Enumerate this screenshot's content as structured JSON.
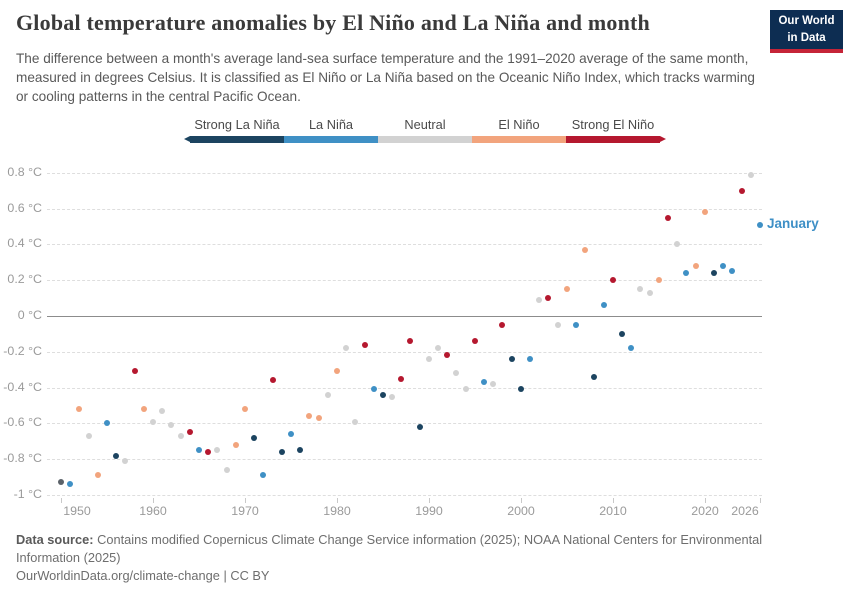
{
  "header": {
    "title": "Global temperature anomalies by El Niño and La Niña and month",
    "subtitle": "The difference between a month's average land-sea surface temperature and the 1991–2020 average of the same month, measured in degrees Celsius. It is classified as El Niño or La Niña based on the Oceanic Niño Index, which tracks warming or cooling patterns in the central Pacific Ocean.",
    "logo_line1": "Our World",
    "logo_line2": "in Data",
    "logo_colors": {
      "background": "#0d2d52",
      "underline": "#c52438"
    }
  },
  "legend": {
    "categories": [
      {
        "id": "strong-la-nina",
        "label": "Strong La Niña",
        "color": "#1c4460"
      },
      {
        "id": "la-nina",
        "label": "La Niña",
        "color": "#3f90c5"
      },
      {
        "id": "neutral",
        "label": "Neutral",
        "color": "#d2d2d2"
      },
      {
        "id": "el-nino",
        "label": "El Niño",
        "color": "#f2a47d"
      },
      {
        "id": "strong-el-nino",
        "label": "Strong El Niño",
        "color": "#b5182f"
      }
    ]
  },
  "chart_data": {
    "type": "scatter",
    "title": "Global temperature anomalies by El Niño and La Niña and month",
    "series_label": "January",
    "series_label_color": "#3d8fc6",
    "xlabel": "",
    "ylabel": "°C",
    "xlim": [
      1948.5,
      2027
    ],
    "ylim": [
      -1.0,
      0.8
    ],
    "grid": "dashed horizontal, solid zero line",
    "legend_position": "top gradient bar with end arrows",
    "x_ticks": [
      1950,
      1960,
      1970,
      1980,
      1990,
      2000,
      2010,
      2020,
      2026
    ],
    "y_ticks": [
      {
        "value": 0.8,
        "label": "0.8 °C"
      },
      {
        "value": 0.6,
        "label": "0.6 °C"
      },
      {
        "value": 0.4,
        "label": "0.4 °C"
      },
      {
        "value": 0.2,
        "label": "0.2 °C"
      },
      {
        "value": 0,
        "label": "0 °C"
      },
      {
        "value": -0.2,
        "label": "-0.2 °C"
      },
      {
        "value": -0.4,
        "label": "-0.4 °C"
      },
      {
        "value": -0.6,
        "label": "-0.6 °C"
      },
      {
        "value": -0.8,
        "label": "-0.8 °C"
      },
      {
        "value": -1,
        "label": "-1 °C"
      }
    ],
    "points": [
      {
        "year": 1950,
        "value": -0.93,
        "category": "neutral",
        "color_override": "#5b6269"
      },
      {
        "year": 1951,
        "value": -0.94,
        "category": "la-nina"
      },
      {
        "year": 1952,
        "value": -0.52,
        "category": "el-nino"
      },
      {
        "year": 1953,
        "value": -0.67,
        "category": "neutral"
      },
      {
        "year": 1954,
        "value": -0.89,
        "category": "el-nino"
      },
      {
        "year": 1955,
        "value": -0.6,
        "category": "la-nina"
      },
      {
        "year": 1956,
        "value": -0.78,
        "category": "strong-la-nina"
      },
      {
        "year": 1957,
        "value": -0.81,
        "category": "neutral"
      },
      {
        "year": 1958,
        "value": -0.31,
        "category": "strong-el-nino"
      },
      {
        "year": 1959,
        "value": -0.52,
        "category": "el-nino"
      },
      {
        "year": 1960,
        "value": -0.59,
        "category": "neutral"
      },
      {
        "year": 1961,
        "value": -0.53,
        "category": "neutral"
      },
      {
        "year": 1962,
        "value": -0.61,
        "category": "neutral"
      },
      {
        "year": 1963,
        "value": -0.67,
        "category": "neutral"
      },
      {
        "year": 1964,
        "value": -0.65,
        "category": "strong-el-nino"
      },
      {
        "year": 1965,
        "value": -0.75,
        "category": "la-nina"
      },
      {
        "year": 1966,
        "value": -0.76,
        "category": "strong-el-nino"
      },
      {
        "year": 1967,
        "value": -0.75,
        "category": "neutral"
      },
      {
        "year": 1968,
        "value": -0.86,
        "category": "neutral"
      },
      {
        "year": 1969,
        "value": -0.72,
        "category": "el-nino"
      },
      {
        "year": 1970,
        "value": -0.52,
        "category": "el-nino"
      },
      {
        "year": 1971,
        "value": -0.68,
        "category": "strong-la-nina"
      },
      {
        "year": 1972,
        "value": -0.89,
        "category": "la-nina"
      },
      {
        "year": 1973,
        "value": -0.36,
        "category": "strong-el-nino"
      },
      {
        "year": 1974,
        "value": -0.76,
        "category": "strong-la-nina"
      },
      {
        "year": 1975,
        "value": -0.66,
        "category": "la-nina"
      },
      {
        "year": 1976,
        "value": -0.75,
        "category": "strong-la-nina"
      },
      {
        "year": 1977,
        "value": -0.56,
        "category": "el-nino"
      },
      {
        "year": 1978,
        "value": -0.57,
        "category": "el-nino"
      },
      {
        "year": 1979,
        "value": -0.44,
        "category": "neutral"
      },
      {
        "year": 1980,
        "value": -0.31,
        "category": "el-nino"
      },
      {
        "year": 1981,
        "value": -0.18,
        "category": "neutral"
      },
      {
        "year": 1982,
        "value": -0.59,
        "category": "neutral"
      },
      {
        "year": 1983,
        "value": -0.16,
        "category": "strong-el-nino"
      },
      {
        "year": 1984,
        "value": -0.41,
        "category": "la-nina"
      },
      {
        "year": 1985,
        "value": -0.44,
        "category": "strong-la-nina"
      },
      {
        "year": 1986,
        "value": -0.45,
        "category": "neutral"
      },
      {
        "year": 1987,
        "value": -0.35,
        "category": "strong-el-nino"
      },
      {
        "year": 1988,
        "value": -0.14,
        "category": "strong-el-nino"
      },
      {
        "year": 1989,
        "value": -0.62,
        "category": "strong-la-nina"
      },
      {
        "year": 1990,
        "value": -0.24,
        "category": "neutral"
      },
      {
        "year": 1991,
        "value": -0.18,
        "category": "neutral"
      },
      {
        "year": 1992,
        "value": -0.22,
        "category": "strong-el-nino"
      },
      {
        "year": 1993,
        "value": -0.32,
        "category": "neutral"
      },
      {
        "year": 1994,
        "value": -0.41,
        "category": "neutral"
      },
      {
        "year": 1995,
        "value": -0.14,
        "category": "strong-el-nino"
      },
      {
        "year": 1996,
        "value": -0.37,
        "category": "la-nina"
      },
      {
        "year": 1997,
        "value": -0.38,
        "category": "neutral"
      },
      {
        "year": 1998,
        "value": -0.05,
        "category": "strong-el-nino"
      },
      {
        "year": 1999,
        "value": -0.24,
        "category": "strong-la-nina"
      },
      {
        "year": 2000,
        "value": -0.41,
        "category": "strong-la-nina"
      },
      {
        "year": 2001,
        "value": -0.24,
        "category": "la-nina"
      },
      {
        "year": 2002,
        "value": 0.09,
        "category": "neutral"
      },
      {
        "year": 2003,
        "value": 0.1,
        "category": "strong-el-nino"
      },
      {
        "year": 2004,
        "value": -0.05,
        "category": "neutral"
      },
      {
        "year": 2005,
        "value": 0.15,
        "category": "el-nino"
      },
      {
        "year": 2006,
        "value": -0.05,
        "category": "la-nina"
      },
      {
        "year": 2007,
        "value": 0.37,
        "category": "el-nino"
      },
      {
        "year": 2008,
        "value": -0.34,
        "category": "strong-la-nina"
      },
      {
        "year": 2009,
        "value": 0.06,
        "category": "la-nina"
      },
      {
        "year": 2010,
        "value": 0.2,
        "category": "strong-el-nino"
      },
      {
        "year": 2011,
        "value": -0.1,
        "category": "strong-la-nina"
      },
      {
        "year": 2012,
        "value": -0.18,
        "category": "la-nina"
      },
      {
        "year": 2013,
        "value": 0.15,
        "category": "neutral"
      },
      {
        "year": 2014,
        "value": 0.13,
        "category": "neutral"
      },
      {
        "year": 2015,
        "value": 0.2,
        "category": "el-nino"
      },
      {
        "year": 2016,
        "value": 0.55,
        "category": "strong-el-nino"
      },
      {
        "year": 2017,
        "value": 0.4,
        "category": "neutral"
      },
      {
        "year": 2018,
        "value": 0.24,
        "category": "la-nina"
      },
      {
        "year": 2019,
        "value": 0.28,
        "category": "el-nino"
      },
      {
        "year": 2020,
        "value": 0.58,
        "category": "el-nino"
      },
      {
        "year": 2021,
        "value": 0.24,
        "category": "strong-la-nina"
      },
      {
        "year": 2022,
        "value": 0.28,
        "category": "la-nina"
      },
      {
        "year": 2023,
        "value": 0.25,
        "category": "la-nina"
      },
      {
        "year": 2024,
        "value": 0.7,
        "category": "strong-el-nino"
      },
      {
        "year": 2025,
        "value": 0.79,
        "category": "neutral"
      },
      {
        "year": 2026,
        "value": 0.51,
        "category": "la-nina"
      }
    ]
  },
  "footer": {
    "source_label": "Data source:",
    "source_text": "Contains modified Copernicus Climate Change Service information (2025); NOAA National Centers for Environmental Information (2025)",
    "link_line": "OurWorldinData.org/climate-change | CC BY"
  }
}
